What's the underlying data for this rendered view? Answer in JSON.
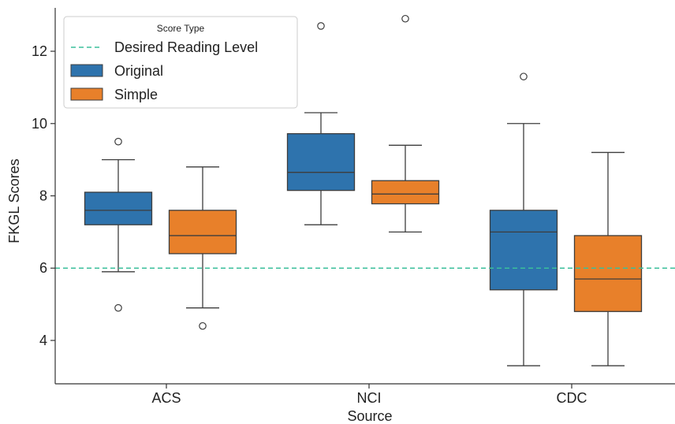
{
  "chart_data": {
    "type": "box",
    "title": "",
    "xlabel": "Source",
    "ylabel": "FKGL Scores",
    "categories": [
      "ACS",
      "NCI",
      "CDC"
    ],
    "ylim": [
      2.8,
      13.2
    ],
    "yticks": [
      4,
      6,
      8,
      10,
      12
    ],
    "reference_line": {
      "name": "Desired Reading Level",
      "value": 6,
      "style": "dashed",
      "color": "#3bbf9b"
    },
    "legend": {
      "title": "Score Type",
      "position": "top-left",
      "entries": [
        "Desired Reading Level",
        "Original",
        "Simple"
      ]
    },
    "series": [
      {
        "name": "Original",
        "color": "#2e73ad",
        "boxes": [
          {
            "category": "ACS",
            "whisker_low": 5.9,
            "q1": 7.2,
            "median": 7.6,
            "q3": 8.1,
            "whisker_high": 9.0,
            "outliers": [
              9.5,
              4.9
            ]
          },
          {
            "category": "NCI",
            "whisker_low": 7.2,
            "q1": 8.15,
            "median": 8.65,
            "q3": 9.72,
            "whisker_high": 10.3,
            "outliers": [
              12.7
            ]
          },
          {
            "category": "CDC",
            "whisker_low": 3.3,
            "q1": 5.4,
            "median": 7.0,
            "q3": 7.6,
            "whisker_high": 10.0,
            "outliers": [
              11.3
            ]
          }
        ]
      },
      {
        "name": "Simple",
        "color": "#e8802a",
        "boxes": [
          {
            "category": "ACS",
            "whisker_low": 4.9,
            "q1": 6.4,
            "median": 6.9,
            "q3": 7.6,
            "whisker_high": 8.8,
            "outliers": [
              4.4
            ]
          },
          {
            "category": "NCI",
            "whisker_low": 7.0,
            "q1": 7.78,
            "median": 8.05,
            "q3": 8.42,
            "whisker_high": 9.4,
            "outliers": [
              12.9
            ]
          },
          {
            "category": "CDC",
            "whisker_low": 3.3,
            "q1": 4.8,
            "median": 5.7,
            "q3": 6.9,
            "whisker_high": 9.2,
            "outliers": []
          }
        ]
      }
    ]
  }
}
